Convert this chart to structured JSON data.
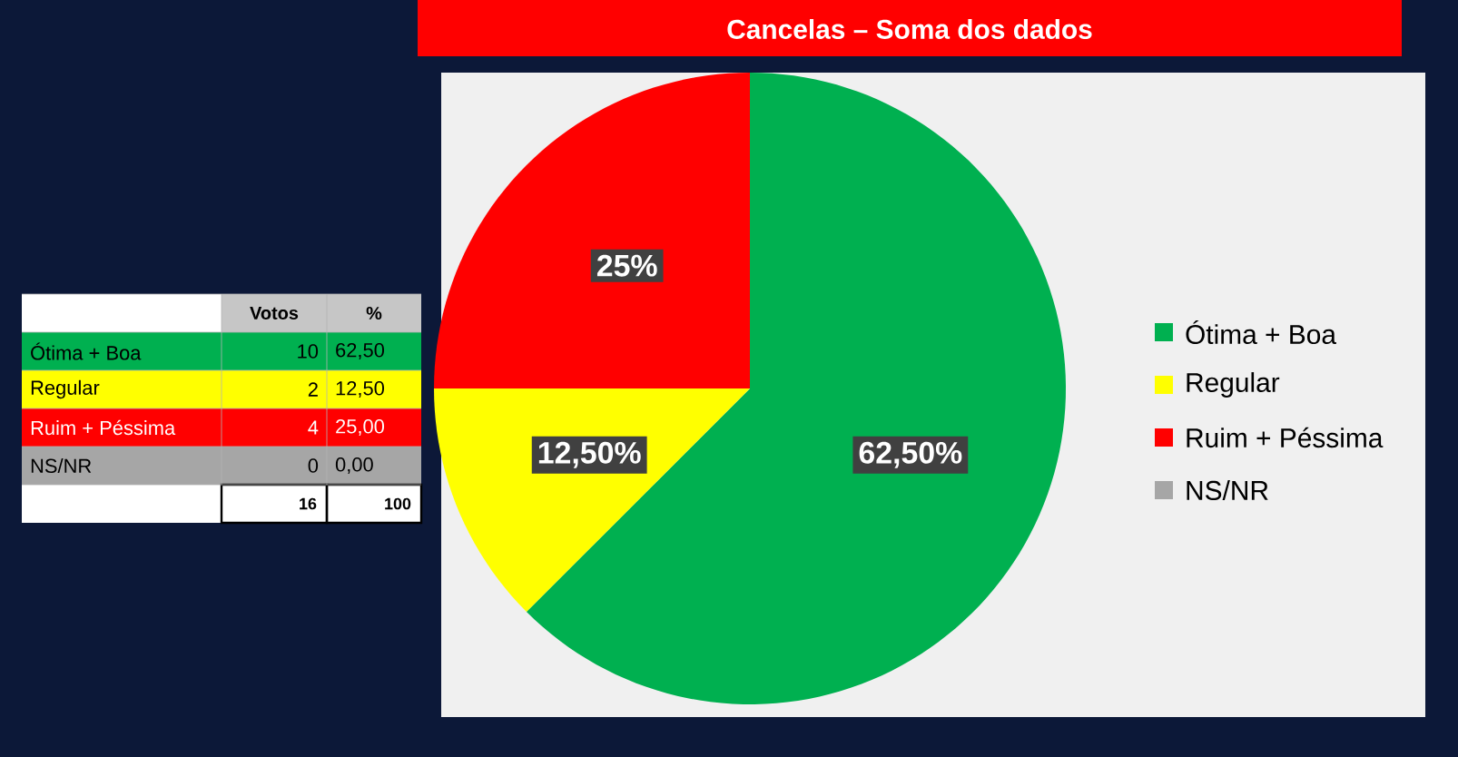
{
  "chart_data": [
    {
      "type": "other",
      "colors": [
        "#00b050",
        "#ffff00",
        "#ff0000",
        "#a6a6a6"
      ],
      "annotations": [
        "Votos",
        "%",
        "Ótima + Boa",
        "10",
        "62,50",
        "Regular",
        "2",
        "12,50",
        "Ruim + Péssima",
        "4",
        "25,00",
        "NS/NR",
        "0",
        "0,00",
        "16",
        "100"
      ]
    },
    {
      "type": "pie",
      "title": "Cancelas – Soma dos dados",
      "categories": [
        "Ótima + Boa",
        "Regular",
        "Ruim + Péssima",
        "NS/NR"
      ],
      "values": [
        62.5,
        12.5,
        25,
        0
      ],
      "colors": [
        "#00b050",
        "#ffff00",
        "#ff0000",
        "#a6a6a6"
      ],
      "value_labels": [
        "62,50%",
        "12,50%",
        "25%",
        null
      ],
      "legend": "right"
    }
  ]
}
